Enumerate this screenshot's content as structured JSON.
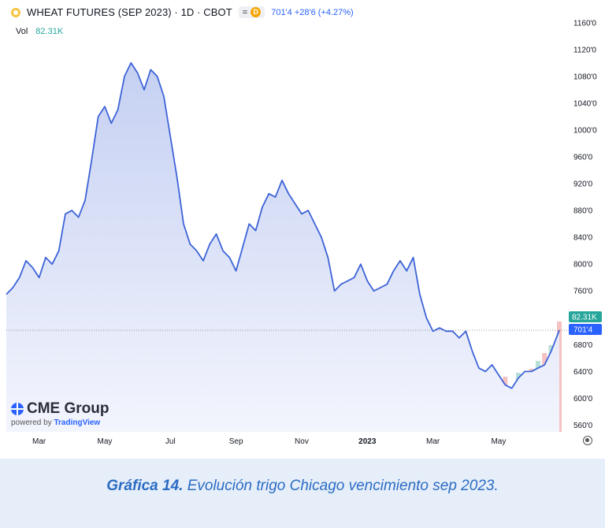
{
  "header": {
    "title": "WHEAT FUTURES (SEP 2023) · 1D · CBOT",
    "pill_label": "D",
    "pill_text": "=",
    "price": "701'4",
    "change": "+28'6 (+4.27%)"
  },
  "volume": {
    "label": "Vol",
    "value": "82.31K"
  },
  "branding": {
    "name": "CME Group",
    "powered_prefix": "powered by",
    "powered_name": "TradingView"
  },
  "colors": {
    "line": "#3d63d8",
    "fill_top": "#c5d0f2",
    "fill_bottom": "#f3f5fd",
    "vol_up": "#b9e0d8",
    "vol_down": "#f6c1c1",
    "last_price_bg": "#2962ff",
    "vol_tag_bg": "#26a69a",
    "caption": "#2b6cc4"
  },
  "caption": {
    "bold": "Gráfica 14.",
    "text": "Evolución trigo Chicago vencimiento sep 2023."
  },
  "chart_data": {
    "type": "area",
    "title": "WHEAT FUTURES (SEP 2023) · 1D · CBOT",
    "ylim": [
      550,
      1175
    ],
    "yticks": [
      "1160'0",
      "1120'0",
      "1080'0",
      "1040'0",
      "1000'0",
      "960'0",
      "920'0",
      "880'0",
      "840'0",
      "800'0",
      "760'0",
      "720'0",
      "680'0",
      "640'0",
      "600'0",
      "560'0"
    ],
    "ytick_values": [
      1160,
      1120,
      1080,
      1040,
      1000,
      960,
      920,
      880,
      840,
      800,
      760,
      720,
      680,
      640,
      600,
      560
    ],
    "xticks": [
      "Mar",
      "May",
      "Jul",
      "Sep",
      "Nov",
      "2023",
      "Mar",
      "May"
    ],
    "xtick_values": [
      2.0,
      4.0,
      6.0,
      8.0,
      10.0,
      12.0,
      14.0,
      16.0
    ],
    "x_domain": [
      1.0,
      17.85
    ],
    "last_price": 701.5,
    "last_price_label": "701'4",
    "volume_label": "82.31K",
    "series": [
      {
        "x": [
          1.0,
          1.2,
          1.4,
          1.6,
          1.8,
          2.0,
          2.2,
          2.4,
          2.6,
          2.8,
          3.0,
          3.2,
          3.4,
          3.6,
          3.8,
          4.0,
          4.2,
          4.4,
          4.6,
          4.8,
          5.0,
          5.2,
          5.4,
          5.6,
          5.8,
          6.0,
          6.2,
          6.4,
          6.6,
          6.8,
          7.0,
          7.2,
          7.4,
          7.6,
          7.8,
          8.0,
          8.2,
          8.4,
          8.6,
          8.8,
          9.0,
          9.2,
          9.4,
          9.6,
          9.8,
          10.0,
          10.2,
          10.4,
          10.6,
          10.8,
          11.0,
          11.2,
          11.4,
          11.6,
          11.8,
          12.0,
          12.2,
          12.4,
          12.6,
          12.8,
          13.0,
          13.2,
          13.4,
          13.6,
          13.8,
          14.0,
          14.2,
          14.4,
          14.6,
          14.8,
          15.0,
          15.2,
          15.4,
          15.6,
          15.8,
          16.0,
          16.2,
          16.4,
          16.6,
          16.8,
          17.0,
          17.2,
          17.4,
          17.6,
          17.85
        ],
        "y": [
          755,
          765,
          780,
          805,
          795,
          780,
          810,
          800,
          820,
          875,
          880,
          870,
          895,
          955,
          1020,
          1035,
          1010,
          1030,
          1080,
          1100,
          1085,
          1060,
          1090,
          1080,
          1050,
          990,
          930,
          860,
          830,
          820,
          805,
          830,
          845,
          820,
          810,
          790,
          825,
          860,
          850,
          885,
          905,
          900,
          925,
          905,
          890,
          875,
          880,
          860,
          840,
          810,
          760,
          770,
          775,
          780,
          800,
          775,
          760,
          765,
          770,
          790,
          805,
          790,
          810,
          755,
          720,
          700,
          705,
          700,
          700,
          690,
          700,
          670,
          645,
          640,
          650,
          635,
          620,
          615,
          630,
          640,
          640,
          645,
          650,
          670,
          701.5
        ]
      }
    ],
    "volume": {
      "x": [
        11.0,
        11.4,
        11.8,
        12.2,
        12.6,
        13.0,
        13.4,
        13.8,
        14.2,
        14.6,
        15.0,
        15.4,
        15.8,
        16.2,
        16.6,
        17.0,
        17.2,
        17.4,
        17.6,
        17.85
      ],
      "values": [
        2,
        2,
        3,
        3,
        4,
        5,
        5,
        6,
        8,
        9,
        10,
        11,
        13,
        14,
        15,
        16,
        18,
        20,
        22,
        28
      ],
      "max": 28
    }
  }
}
